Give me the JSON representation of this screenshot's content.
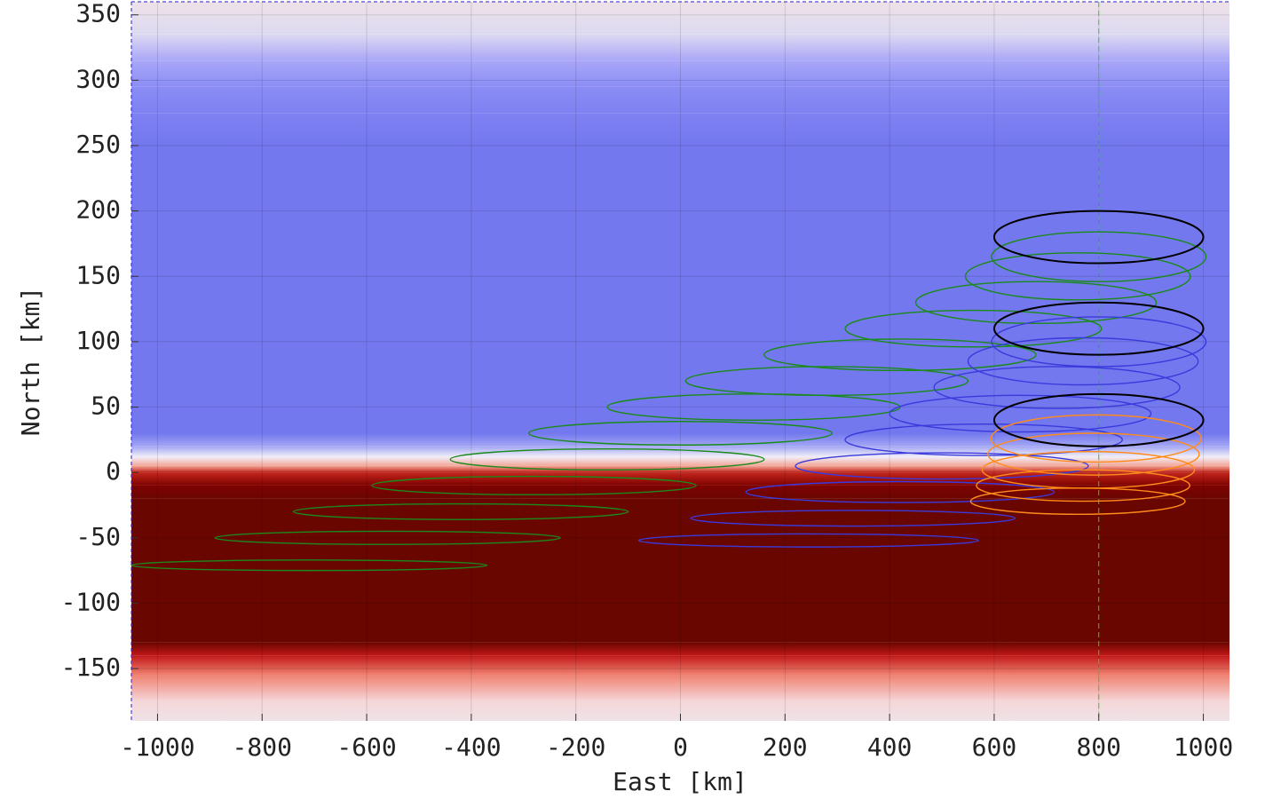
{
  "chart_data": {
    "type": "tubes",
    "x_label": "East [km]",
    "y_label": "North [km]",
    "xlim": [
      -1050,
      1050
    ],
    "ylim": [
      -190,
      360
    ],
    "xticks": [
      -1000,
      -800,
      -600,
      -400,
      -200,
      0,
      200,
      400,
      600,
      800,
      1000
    ],
    "yticks": [
      -150,
      -100,
      -50,
      0,
      50,
      100,
      150,
      200,
      250,
      300,
      350
    ],
    "grid": true,
    "background": {
      "y": [
        360,
        335,
        315,
        295,
        275,
        250,
        30,
        20,
        12,
        5,
        0,
        -10,
        -20,
        -130,
        -140,
        -155,
        -175,
        -190
      ],
      "colors": [
        "#efe2e8",
        "#dcd9f1",
        "#aaa7f8",
        "#8b8df5",
        "#7f81f2",
        "#7378ee",
        "#7378ee",
        "#a3a6f4",
        "#f1eef8",
        "#f2a596",
        "#c4251c",
        "#7e0200",
        "#6a0600",
        "#6a0600",
        "#c01818",
        "#f08272",
        "#f5d6d8",
        "#efe2e6"
      ]
    },
    "vline": {
      "x": 800,
      "color": "#33cc33"
    },
    "tubes": [
      {
        "color": "#1a8a1a",
        "x": [
          -710,
          -560,
          -420,
          -280,
          -140,
          0,
          140,
          280,
          420,
          560,
          680,
          760,
          800,
          800
        ],
        "y": [
          -71,
          -50,
          -30,
          -10,
          10,
          30,
          50,
          70,
          90,
          110,
          130,
          150,
          165,
          180
        ],
        "rx": [
          340,
          330,
          320,
          310,
          300,
          290,
          280,
          270,
          260,
          245,
          230,
          215,
          205,
          200
        ],
        "ry": [
          4,
          5,
          6,
          7,
          8,
          9,
          10,
          11,
          12,
          14,
          16,
          18,
          19,
          20
        ]
      },
      {
        "color": "#3a3adc",
        "x": [
          245,
          330,
          420,
          500,
          580,
          650,
          720,
          770,
          800,
          800
        ],
        "y": [
          -52,
          -35,
          -15,
          5,
          25,
          45,
          65,
          85,
          100,
          110
        ],
        "rx": [
          325,
          310,
          295,
          280,
          265,
          250,
          235,
          220,
          205,
          200
        ],
        "ry": [
          5,
          6,
          8,
          10,
          12,
          14,
          16,
          18,
          19,
          20
        ]
      },
      {
        "color": "#ff8c1a",
        "x": [
          760,
          770,
          780,
          790,
          795,
          800
        ],
        "y": [
          -22,
          -10,
          2,
          14,
          26,
          40
        ],
        "rx": [
          205,
          204,
          203,
          202,
          201,
          200
        ],
        "ry": [
          10,
          12,
          14,
          16,
          18,
          20
        ]
      }
    ],
    "ellipses": {
      "color": "#000000",
      "x": [
        800,
        800,
        800
      ],
      "y": [
        180,
        110,
        40
      ],
      "rx": [
        200,
        200,
        200
      ],
      "ry": [
        20,
        20,
        20
      ]
    }
  }
}
